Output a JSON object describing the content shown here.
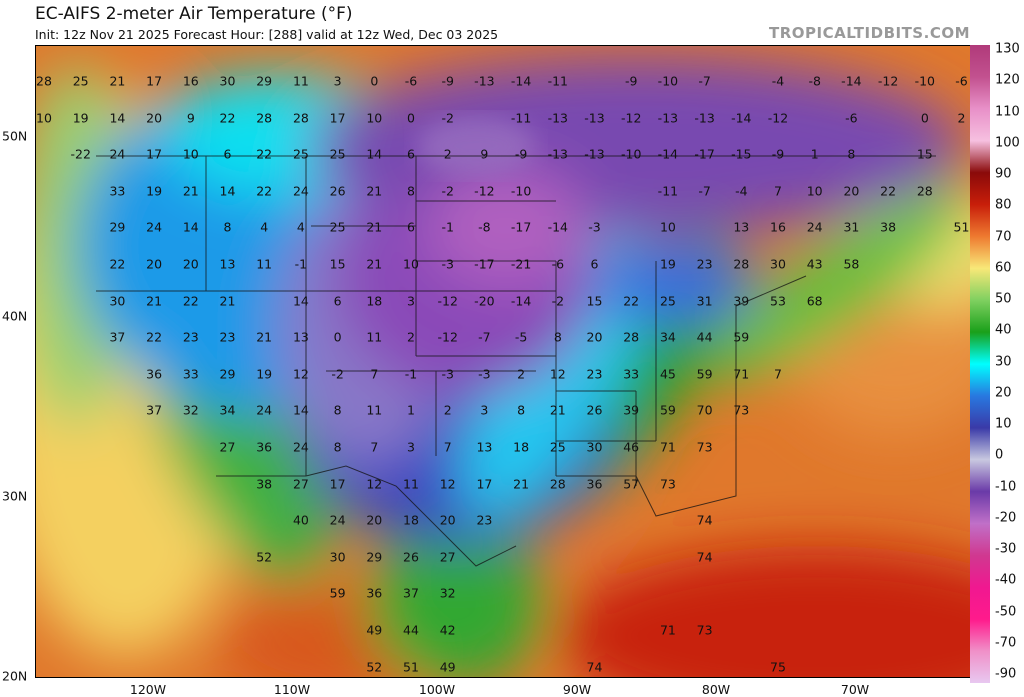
{
  "header": {
    "title": "EC-AIFS 2-meter Air Temperature (°F)",
    "subtitle": "Init: 12z Nov 21 2025   Forecast Hour: [288]   valid at 12z Wed, Dec 03 2025",
    "brand": "TROPICALTIDBITS.COM"
  },
  "axes": {
    "lat_labels": [
      "50N",
      "40N",
      "30N",
      "20N"
    ],
    "lon_labels": [
      "120W",
      "110W",
      "100W",
      "90W",
      "80W",
      "70W"
    ]
  },
  "colorbar": {
    "ticks": [
      "130",
      "120",
      "110",
      "100",
      "90",
      "80",
      "70",
      "60",
      "50",
      "40",
      "30",
      "20",
      "10",
      "0",
      "-10",
      "-20",
      "-30",
      "-40",
      "-50",
      "-70",
      "-90"
    ],
    "colors": [
      "#b03a7a",
      "#c2518f",
      "#e890c8",
      "#f6c0e0",
      "#8a0a0a",
      "#c81e0a",
      "#ee7a30",
      "#f8e878",
      "#7fd060",
      "#1aa01a",
      "#00ffff",
      "#2878e0",
      "#3a3aa8",
      "#c8c8e0",
      "#6a3aa8",
      "#c070c8",
      "#d03890",
      "#f01890",
      "#ff1a8c",
      "#f090c8",
      "#e8c8f0"
    ]
  },
  "temperature_grid": [
    [
      28,
      25,
      21,
      17,
      16,
      30,
      29,
      11,
      3,
      0,
      -6,
      -9,
      -13,
      -14,
      -11,
      null,
      -9,
      -10,
      -7,
      null,
      -4,
      -8,
      -14,
      -12,
      -10,
      -6
    ],
    [
      10,
      19,
      14,
      20,
      9,
      22,
      28,
      28,
      17,
      10,
      0,
      -2,
      null,
      -11,
      -13,
      -13,
      -12,
      -13,
      -13,
      -14,
      -12,
      null,
      -6,
      null,
      0,
      2
    ],
    [
      null,
      -22,
      24,
      17,
      10,
      6,
      22,
      25,
      25,
      14,
      6,
      2,
      9,
      -9,
      -13,
      -13,
      -10,
      -14,
      -17,
      -15,
      -9,
      1,
      8,
      null,
      15,
      null
    ],
    [
      null,
      null,
      33,
      19,
      21,
      14,
      22,
      24,
      26,
      21,
      8,
      -2,
      -12,
      -10,
      null,
      null,
      null,
      -11,
      -7,
      -4,
      7,
      10,
      20,
      22,
      28,
      null
    ],
    [
      null,
      null,
      29,
      24,
      14,
      8,
      4,
      4,
      25,
      21,
      6,
      -1,
      -8,
      -17,
      -14,
      -3,
      null,
      10,
      null,
      13,
      16,
      24,
      31,
      38,
      null,
      51
    ],
    [
      null,
      null,
      22,
      20,
      20,
      13,
      11,
      -1,
      15,
      21,
      10,
      -3,
      -17,
      -21,
      -6,
      6,
      null,
      19,
      23,
      28,
      30,
      43,
      58,
      null,
      null,
      null
    ],
    [
      null,
      null,
      30,
      21,
      22,
      21,
      null,
      14,
      6,
      18,
      3,
      -12,
      -20,
      -14,
      -2,
      15,
      22,
      25,
      31,
      39,
      53,
      68,
      null,
      null,
      null,
      null
    ],
    [
      null,
      null,
      37,
      22,
      23,
      23,
      21,
      13,
      0,
      11,
      2,
      -12,
      -7,
      -5,
      8,
      20,
      28,
      34,
      44,
      59,
      null,
      null,
      null,
      null,
      null,
      null
    ],
    [
      null,
      null,
      null,
      36,
      33,
      29,
      19,
      12,
      -2,
      7,
      -1,
      -3,
      -3,
      2,
      12,
      23,
      33,
      45,
      59,
      71,
      7,
      null,
      null,
      null,
      null,
      null
    ],
    [
      null,
      null,
      null,
      37,
      32,
      34,
      24,
      14,
      8,
      11,
      1,
      2,
      3,
      8,
      21,
      26,
      39,
      59,
      70,
      73,
      null,
      null,
      null,
      null,
      null,
      null
    ],
    [
      null,
      null,
      null,
      null,
      null,
      27,
      36,
      24,
      8,
      7,
      3,
      7,
      13,
      18,
      25,
      30,
      46,
      71,
      73,
      null,
      null,
      null,
      null,
      null,
      null,
      null
    ],
    [
      null,
      null,
      null,
      null,
      null,
      null,
      38,
      27,
      17,
      12,
      11,
      12,
      17,
      21,
      28,
      36,
      57,
      73,
      null,
      null,
      null,
      null,
      null,
      null,
      null,
      null
    ],
    [
      null,
      null,
      null,
      null,
      null,
      null,
      null,
      40,
      24,
      20,
      18,
      20,
      23,
      null,
      null,
      null,
      null,
      null,
      74,
      null,
      null,
      null,
      null,
      null,
      null,
      null
    ],
    [
      null,
      null,
      null,
      null,
      null,
      null,
      52,
      null,
      30,
      29,
      26,
      27,
      null,
      null,
      null,
      null,
      null,
      null,
      74,
      null,
      null,
      null,
      null,
      null,
      null,
      null
    ],
    [
      null,
      null,
      null,
      null,
      null,
      null,
      null,
      null,
      59,
      36,
      37,
      32,
      null,
      null,
      null,
      null,
      null,
      null,
      null,
      null,
      null,
      null,
      null,
      null,
      null,
      null
    ],
    [
      null,
      null,
      null,
      null,
      null,
      null,
      null,
      null,
      null,
      49,
      44,
      42,
      null,
      null,
      null,
      null,
      null,
      71,
      73,
      null,
      null,
      null,
      null,
      null,
      null,
      null
    ],
    [
      null,
      null,
      null,
      null,
      null,
      null,
      null,
      null,
      null,
      52,
      51,
      49,
      null,
      null,
      null,
      74,
      null,
      null,
      null,
      null,
      75,
      null,
      null,
      null,
      null,
      null
    ]
  ]
}
